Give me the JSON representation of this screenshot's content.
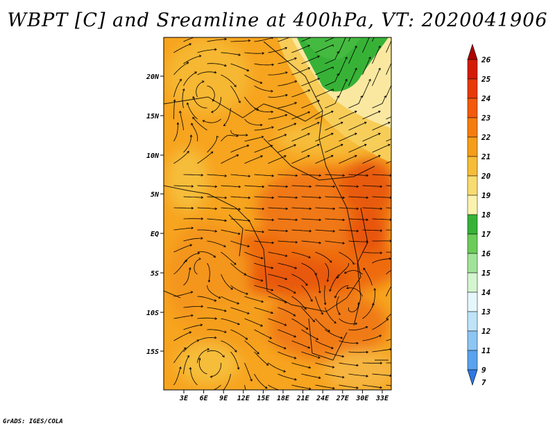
{
  "title": "WBPT [C] and Sreamline at 400hPa, VT: 2020041906",
  "footer": "GrADS: IGES/COLA",
  "map": {
    "lat_labels": [
      "20N",
      "15N",
      "10N",
      "5N",
      "EQ",
      "5S",
      "10S",
      "15S"
    ],
    "lon_labels": [
      "3E",
      "6E",
      "9E",
      "12E",
      "15E",
      "18E",
      "21E",
      "24E",
      "27E",
      "30E",
      "33E"
    ]
  },
  "colorbar": {
    "levels": [
      "26",
      "25",
      "24",
      "23",
      "22",
      "21",
      "20",
      "19",
      "18",
      "17",
      "16",
      "15",
      "14",
      "13",
      "12",
      "11",
      "9",
      "7"
    ],
    "colors": [
      "#b00000",
      "#d21c06",
      "#e63a08",
      "#f25a0c",
      "#f57d10",
      "#f59e1a",
      "#f6bd3a",
      "#f8dc72",
      "#fbf2b0",
      "#37b237",
      "#6ccc5a",
      "#a2e39a",
      "#d4f5d0",
      "#e6f7fb",
      "#bfe3f8",
      "#8ec6f3",
      "#5aa3ec",
      "#2d78e2"
    ]
  }
}
